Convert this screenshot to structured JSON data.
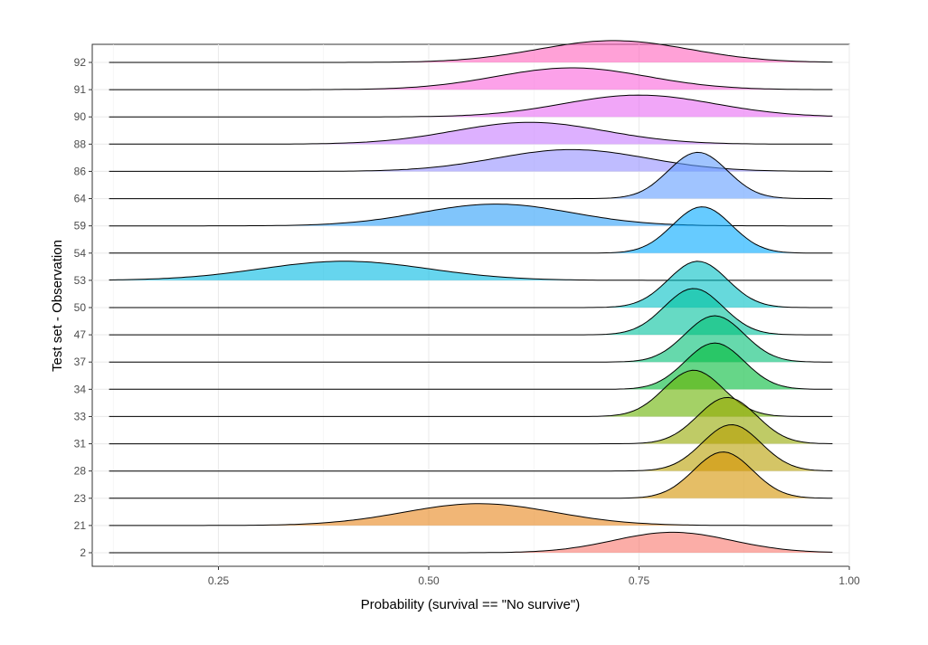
{
  "chart_data": {
    "type": "ridgeline",
    "title": "",
    "xlabel": "Probability (survival == \"No survive\")",
    "ylabel": "Test set - Observation",
    "xlim": [
      0.1,
      1.0
    ],
    "x_ticks": [
      0.25,
      0.5,
      0.75,
      1.0
    ],
    "x_tick_labels": [
      "0.25",
      "0.50",
      "0.75",
      "1.00"
    ],
    "grid": true,
    "legend": "none",
    "series": [
      {
        "name": "2",
        "color": "#F8766D",
        "peak": 0.79,
        "sd": 0.07,
        "rel_height": 0.75
      },
      {
        "name": "21",
        "color": "#E7861B",
        "peak": 0.56,
        "sd": 0.09,
        "rel_height": 0.8
      },
      {
        "name": "23",
        "color": "#D39200",
        "peak": 0.85,
        "sd": 0.035,
        "rel_height": 1.7
      },
      {
        "name": "28",
        "color": "#B89F00",
        "peak": 0.86,
        "sd": 0.035,
        "rel_height": 1.7
      },
      {
        "name": "31",
        "color": "#95A900",
        "peak": 0.855,
        "sd": 0.035,
        "rel_height": 1.7
      },
      {
        "name": "33",
        "color": "#67B300",
        "peak": 0.815,
        "sd": 0.035,
        "rel_height": 1.7
      },
      {
        "name": "34",
        "color": "#00BA38",
        "peak": 0.84,
        "sd": 0.035,
        "rel_height": 1.7
      },
      {
        "name": "37",
        "color": "#00BF74",
        "peak": 0.84,
        "sd": 0.035,
        "rel_height": 1.7
      },
      {
        "name": "47",
        "color": "#00C19C",
        "peak": 0.815,
        "sd": 0.035,
        "rel_height": 1.7
      },
      {
        "name": "50",
        "color": "#00BFC4",
        "peak": 0.82,
        "sd": 0.035,
        "rel_height": 1.7
      },
      {
        "name": "53",
        "color": "#00B9E3",
        "peak": 0.4,
        "sd": 0.1,
        "rel_height": 0.7
      },
      {
        "name": "54",
        "color": "#00A9FF",
        "peak": 0.825,
        "sd": 0.035,
        "rel_height": 1.7
      },
      {
        "name": "59",
        "color": "#2C9FF9",
        "peak": 0.58,
        "sd": 0.09,
        "rel_height": 0.8
      },
      {
        "name": "64",
        "color": "#619CFF",
        "peak": 0.82,
        "sd": 0.035,
        "rel_height": 1.7
      },
      {
        "name": "86",
        "color": "#9590FF",
        "peak": 0.67,
        "sd": 0.09,
        "rel_height": 0.8
      },
      {
        "name": "88",
        "color": "#C77CFF",
        "peak": 0.62,
        "sd": 0.09,
        "rel_height": 0.8
      },
      {
        "name": "90",
        "color": "#E76BF3",
        "peak": 0.75,
        "sd": 0.09,
        "rel_height": 0.8
      },
      {
        "name": "91",
        "color": "#FA62DB",
        "peak": 0.67,
        "sd": 0.09,
        "rel_height": 0.8
      },
      {
        "name": "92",
        "color": "#FF62BC",
        "peak": 0.72,
        "sd": 0.09,
        "rel_height": 0.8
      }
    ]
  }
}
